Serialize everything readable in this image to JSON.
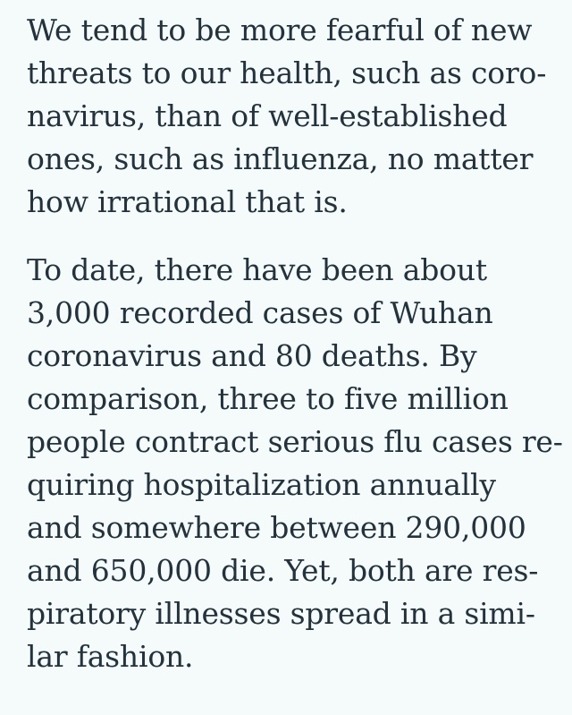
{
  "article": {
    "paragraphs": [
      {
        "lines": [
          "We tend to be more fearful of new",
          "threats to our health, such as coro-",
          "navirus, than of well-established",
          "ones, such as influenza, no matter",
          "how irrational that is."
        ]
      },
      {
        "lines": [
          "To date, there have been about",
          "3,000 recorded cases of Wuhan",
          "coronavirus and 80 deaths. By",
          "comparison, three to five million",
          "people contract serious flu cases re-",
          "quiring hospitalization annually",
          "and somewhere between 290,000",
          "and 650,000 die. Yet, both are res-",
          "piratory illnesses spread in a simi-",
          "lar fashion."
        ]
      }
    ]
  },
  "colors": {
    "background": "#f5fbfb",
    "text": "#23323c"
  }
}
